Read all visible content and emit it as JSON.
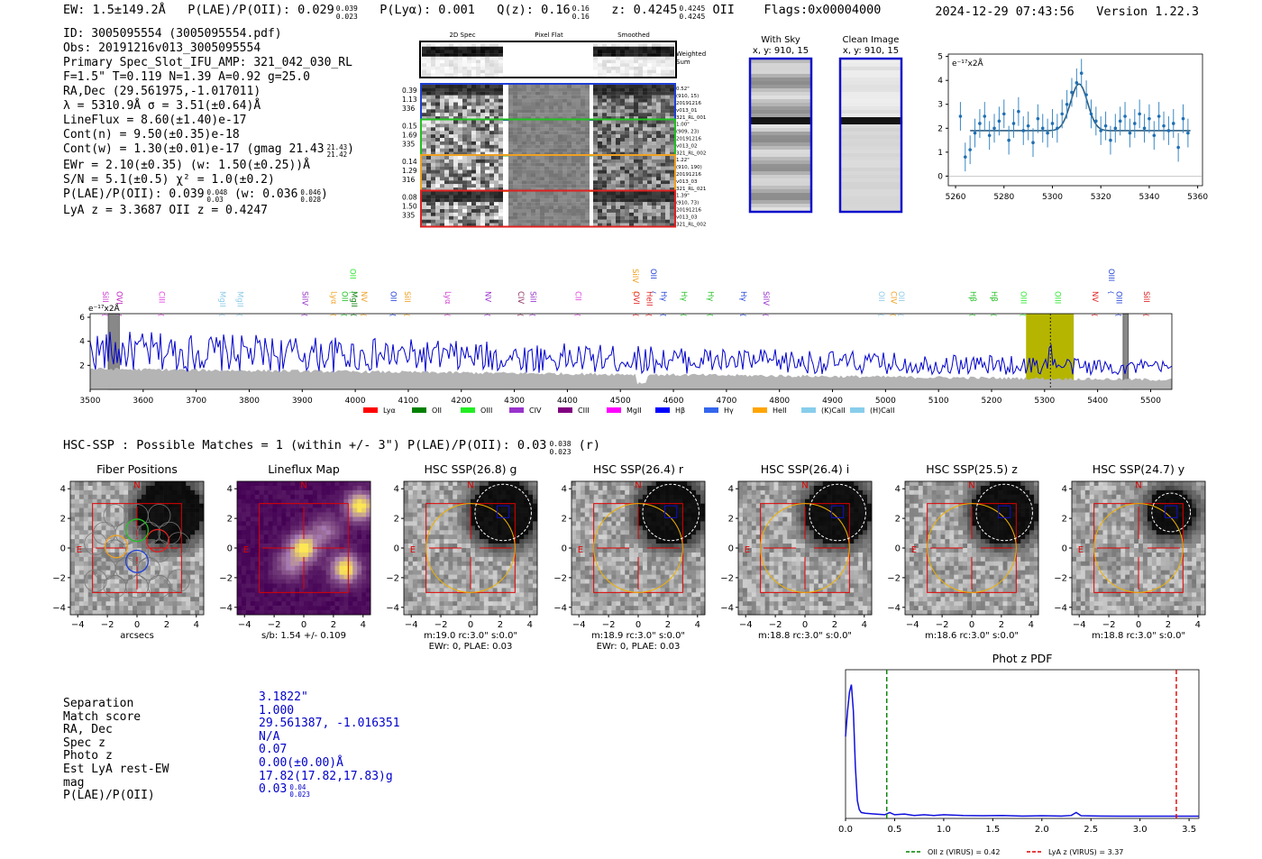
{
  "header": {
    "ew": "EW: 1.5±149.2Å",
    "plae_label": "P(LAE)/P(OII): 0.029",
    "plae_hi": "0.039",
    "plae_lo": "0.023",
    "plya": "P(Lyα): 0.001",
    "qz_label": "Q(z): 0.16",
    "qz_hi": "0.16",
    "qz_lo": "0.16",
    "z_label": "z: 0.4245",
    "z_hi": "0.4245",
    "z_lo": "0.4245",
    "z_line": "OII",
    "flags": "Flags:0x00004000",
    "timestamp": "2024-12-29 07:43:56",
    "version": "Version 1.22.3"
  },
  "info": {
    "lines": [
      "ID: 3005095554 (3005095554.pdf)",
      "Obs: 20191216v013_3005095554",
      "Primary Spec_Slot_IFU_AMP: 321_042_030_RL",
      "F=1.5\"  T=0.119  N=1.39  A=0.92  g=25.0",
      "RA,Dec (29.561975,-1.017011)",
      "λ = 5310.9Å   σ = 3.51(±0.64)Å",
      "LineFlux = 8.60(±1.40)e-17",
      "Cont(n) = 9.50(±0.35)e-18",
      "Cont(w) = 1.30(±0.01)e-17 (gmag 21.43",
      "EWr = 2.10(±0.35) (w: 1.50(±0.25))Å",
      "S/N = 5.1(±0.5)  χ² = 1.0(±0.2)",
      "P(LAE)/P(OII): 0.039",
      "LyA z = 3.3687  OII z = 0.4247"
    ],
    "gmag_hi": "21.43",
    "gmag_lo": "21.42",
    "plae_hi": "0.048",
    "plae_lo": "0.03",
    "plae_w": "(w: 0.036",
    "plae_w_hi": "0.046",
    "plae_w_lo": "0.028"
  },
  "cutouts": {
    "col_titles": [
      "2D Spec",
      "Pixel Flat",
      "Smoothed"
    ],
    "weighted": "Weighted Sum",
    "rows": [
      {
        "stats": [
          "0.39",
          "1.13",
          "336"
        ],
        "meta": [
          "0.52\"",
          "(910, 15)",
          "20191216",
          "v013_01",
          "321_RL_001"
        ],
        "color": "#1f3fd6"
      },
      {
        "stats": [
          "0.15",
          "1.69",
          "335"
        ],
        "meta": [
          "1.00\"",
          "(909, 23)",
          "20191216",
          "v013_02",
          "321_RL_002"
        ],
        "color": "#22c022"
      },
      {
        "stats": [
          "0.14",
          "1.29",
          "316"
        ],
        "meta": [
          "1.22\"",
          "(910, 190)",
          "20191216",
          "v013_03",
          "321_RL_021"
        ],
        "color": "#f0a020"
      },
      {
        "stats": [
          "0.08",
          "1.50",
          "335"
        ],
        "meta": [
          "1.39\"",
          "(910, 73)",
          "20191216",
          "v013_03",
          "321_RL_002"
        ],
        "color": "#e02020"
      }
    ],
    "with_sky_title": "With Sky",
    "with_sky_xy": "x, y: 910, 15",
    "clean_title": "Clean Image",
    "clean_xy": "x, y: 910, 15"
  },
  "zoom_chart_unit": "e⁻¹⁷x2Å",
  "spectrum_unit": "e⁻¹⁷x2Å",
  "line_labels": [
    {
      "name": "SiII",
      "w": 3519,
      "color": "#d040d0",
      "h": 1
    },
    {
      "name": "OVI",
      "w": 3545,
      "color": "#c020c0",
      "h": 1
    },
    {
      "name": "CIII",
      "w": 3625,
      "color": "#e040e0",
      "h": 1
    },
    {
      "name": "MgII",
      "w": 3740,
      "color": "#8ecbe8",
      "h": 1
    },
    {
      "name": "MgII",
      "w": 3773,
      "color": "#8ecbe8",
      "h": 1
    },
    {
      "name": "SiIV",
      "w": 3895,
      "color": "#9933cc",
      "h": 1
    },
    {
      "name": "Lyα",
      "w": 3950,
      "color": "#f0a020",
      "h": 1
    },
    {
      "name": "OII",
      "w": 3970,
      "color": "#22c022",
      "h": 1
    },
    {
      "name": "OII",
      "w": 3985,
      "color": "#2ee82e",
      "h": 2
    },
    {
      "name": "MgII",
      "w": 3988,
      "color": "#108010",
      "h": 1
    },
    {
      "name": "NV",
      "w": 4007,
      "color": "#f0a020",
      "h": 1
    },
    {
      "name": "OII",
      "w": 4062,
      "color": "#1f3fd6",
      "h": 1
    },
    {
      "name": "SiII",
      "w": 4088,
      "color": "#f0a020",
      "h": 1
    },
    {
      "name": "Lyα",
      "w": 4165,
      "color": "#d040d0",
      "h": 1
    },
    {
      "name": "NV",
      "w": 4240,
      "color": "#9933cc",
      "h": 1
    },
    {
      "name": "CIV",
      "w": 4302,
      "color": "#8a3060",
      "h": 1
    },
    {
      "name": "SiII",
      "w": 4325,
      "color": "#9933cc",
      "h": 1
    },
    {
      "name": "CII",
      "w": 4410,
      "color": "#e040e0",
      "h": 1
    },
    {
      "name": "SiIV",
      "w": 4518,
      "color": "#f0a020",
      "h": 2
    },
    {
      "name": "OVI",
      "w": 4520,
      "color": "#e02020",
      "h": 1
    },
    {
      "name": "OII",
      "w": 4552,
      "color": "#1f3fd6",
      "h": 2
    },
    {
      "name": "HeII",
      "w": 4545,
      "color": "#e02020",
      "h": 1
    },
    {
      "name": "Hγ",
      "w": 4572,
      "color": "#1f3fd6",
      "h": 1
    },
    {
      "name": "Hγ",
      "w": 4610,
      "color": "#22c022",
      "h": 1
    },
    {
      "name": "Hγ",
      "w": 4660,
      "color": "#22c022",
      "h": 1
    },
    {
      "name": "Hγ",
      "w": 4722,
      "color": "#1f3fd6",
      "h": 1
    },
    {
      "name": "SiIV",
      "w": 4765,
      "color": "#9933cc",
      "h": 1
    },
    {
      "name": "OII",
      "w": 4982,
      "color": "#8ecbe8",
      "h": 1
    },
    {
      "name": "CIV",
      "w": 5005,
      "color": "#f0a020",
      "h": 1
    },
    {
      "name": "OII",
      "w": 5020,
      "color": "#8ecbe8",
      "h": 1
    },
    {
      "name": "Hβ",
      "w": 5155,
      "color": "#22c022",
      "h": 1
    },
    {
      "name": "Hβ",
      "w": 5195,
      "color": "#22c022",
      "h": 1
    },
    {
      "name": "OIII",
      "w": 5250,
      "color": "#2ee82e",
      "h": 1
    },
    {
      "name": "OIII",
      "w": 5315,
      "color": "#2ee82e",
      "h": 1
    },
    {
      "name": "NV",
      "w": 5385,
      "color": "#e02020",
      "h": 1
    },
    {
      "name": "OIII",
      "w": 5416,
      "color": "#1f3fd6",
      "h": 2
    },
    {
      "name": "OIII",
      "w": 5430,
      "color": "#1f3fd6",
      "h": 1
    },
    {
      "name": "SiII",
      "w": 5482,
      "color": "#e02020",
      "h": 1
    }
  ],
  "legend": [
    {
      "label": "Lyα",
      "color": "#ff0000"
    },
    {
      "label": "OII",
      "color": "#008000"
    },
    {
      "label": "OIII",
      "color": "#22ee22"
    },
    {
      "label": "CIV",
      "color": "#9933cc"
    },
    {
      "label": "CIII",
      "color": "#800080"
    },
    {
      "label": "MgII",
      "color": "#ff00ff"
    },
    {
      "label": "Hβ",
      "color": "#0000ff"
    },
    {
      "label": "Hγ",
      "color": "#3366ee"
    },
    {
      "label": "HeII",
      "color": "#ffa500"
    },
    {
      "label": "(K)CaII",
      "color": "#87ceeb"
    },
    {
      "label": "(H)CaII",
      "color": "#87ceeb"
    }
  ],
  "hsc": {
    "summary": "HSC-SSP : Possible Matches = 1 (within +/- 3\")  P(LAE)/P(OII): 0.03",
    "summary_hi": "0.038",
    "summary_lo": "0.023",
    "summary_tail": "(r)",
    "panels": [
      {
        "title": "Fiber Positions",
        "caption1": "arcsecs",
        "caption2": ""
      },
      {
        "title": "Lineflux Map",
        "caption1": "s/b: 1.54 +/- 0.109",
        "caption2": ""
      },
      {
        "title": "HSC SSP(26.8) g",
        "caption1": "m:19.0 rc:3.0\"  s:0.0\"",
        "caption2": "EWr: 0, PLAE: 0.03"
      },
      {
        "title": "HSC SSP(26.4) r",
        "caption1": "m:18.9 rc:3.0\"  s:0.0\"",
        "caption2": "EWr: 0, PLAE: 0.03"
      },
      {
        "title": "HSC SSP(26.4) i",
        "caption1": "m:18.8 rc:3.0\"  s:0.0\"",
        "caption2": ""
      },
      {
        "title": "HSC SSP(25.5) z",
        "caption1": "m:18.6 rc:3.0\"  s:0.0\"",
        "caption2": ""
      },
      {
        "title": "HSC SSP(24.7) y",
        "caption1": "m:18.8 rc:3.0\"  s:0.0\"",
        "caption2": ""
      }
    ],
    "north": "N",
    "east": "E"
  },
  "match_table": {
    "labels": [
      "Separation",
      "Match score",
      "RA, Dec",
      "Spec z",
      "Photo z",
      "Est LyA rest-EW",
      "mag",
      "P(LAE)/P(OII)"
    ],
    "values": [
      "3.1822\"",
      "1.000",
      "29.561387, -1.016351",
      "N/A",
      "0.07",
      "0.00(±0.00)Å",
      "17.82(17.82,17.83)g",
      "0.03"
    ],
    "plae_hi": "0.04",
    "plae_lo": "0.023"
  },
  "chart_data": [
    {
      "type": "line",
      "id": "zoom-spectrum",
      "title": "",
      "ylabel": "e⁻¹⁷x2Å",
      "xlim": [
        5257,
        5362
      ],
      "ylim": [
        -0.4,
        5.1
      ],
      "xticks": [
        5260,
        5280,
        5300,
        5320,
        5340,
        5360
      ],
      "yticks": [
        0,
        1,
        2,
        3,
        4,
        5
      ],
      "x": [
        5262,
        5264,
        5266,
        5268,
        5270,
        5272,
        5274,
        5276,
        5278,
        5280,
        5282,
        5284,
        5286,
        5288,
        5290,
        5292,
        5294,
        5296,
        5298,
        5300,
        5302,
        5304,
        5306,
        5308,
        5310,
        5312,
        5314,
        5316,
        5318,
        5320,
        5322,
        5324,
        5326,
        5328,
        5330,
        5332,
        5334,
        5336,
        5338,
        5340,
        5342,
        5344,
        5346,
        5348,
        5350,
        5352,
        5354,
        5356
      ],
      "values": [
        2.5,
        0.8,
        1.1,
        1.8,
        2.2,
        2.5,
        1.7,
        2.0,
        2.3,
        2.6,
        1.5,
        2.2,
        2.7,
        1.9,
        2.1,
        1.4,
        2.4,
        2.0,
        1.8,
        2.2,
        2.0,
        2.6,
        3.0,
        3.5,
        3.9,
        4.3,
        3.4,
        2.6,
        2.3,
        1.9,
        2.1,
        1.5,
        2.0,
        2.3,
        2.5,
        1.8,
        2.2,
        2.6,
        2.0,
        2.4,
        1.7,
        2.5,
        2.1,
        1.9,
        2.2,
        1.2,
        2.4,
        1.8
      ],
      "errors": [
        0.6,
        0.6,
        0.6,
        0.6,
        0.6,
        0.6,
        0.6,
        0.6,
        0.6,
        0.6,
        0.6,
        0.6,
        0.6,
        0.6,
        0.6,
        0.6,
        0.6,
        0.6,
        0.6,
        0.6,
        0.6,
        0.6,
        0.6,
        0.6,
        0.6,
        0.6,
        0.6,
        0.6,
        0.6,
        0.6,
        0.6,
        0.6,
        0.6,
        0.6,
        0.6,
        0.6,
        0.6,
        0.6,
        0.6,
        0.6,
        0.6,
        0.6,
        0.6,
        0.6,
        0.6,
        0.6,
        0.6,
        0.6
      ],
      "model": {
        "continuum": 1.9,
        "center": 5311,
        "sigma": 3.51,
        "amplitude": 1.95,
        "x_range": [
          5266,
          5357
        ]
      }
    },
    {
      "type": "line",
      "id": "full-spectrum",
      "title": "",
      "ylabel": "e⁻¹⁷x2Å",
      "xlim": [
        3500,
        5540
      ],
      "ylim": [
        0,
        6.3
      ],
      "xticks": [
        3500,
        3600,
        3700,
        3800,
        3900,
        4000,
        4100,
        4200,
        4300,
        4400,
        4500,
        4600,
        4700,
        4800,
        4900,
        5000,
        5100,
        5200,
        5300,
        5400,
        5500
      ],
      "yticks": [
        2,
        4,
        6
      ],
      "highlight_range": [
        5265,
        5355
      ],
      "line_center": 5310.9,
      "masked_ranges": [
        [
          3534,
          3555
        ],
        [
          5448,
          5458
        ]
      ],
      "series": [
        {
          "name": "flux",
          "color": "#0000cc",
          "x_range": [
            3500,
            5540
          ],
          "points": 600,
          "seed": 17
        },
        {
          "name": "error",
          "color": "#b4b4b4",
          "x_range": [
            3500,
            5540
          ]
        }
      ]
    },
    {
      "type": "line",
      "id": "photz-pdf",
      "title": "Phot z PDF",
      "xlabel": "",
      "ylabel": "",
      "xlim": [
        0,
        3.6
      ],
      "ylim": [
        0,
        1
      ],
      "xticks": [
        0.0,
        0.5,
        1.0,
        1.5,
        2.0,
        2.5,
        3.0,
        3.5
      ],
      "x": [
        0,
        0.02,
        0.04,
        0.06,
        0.08,
        0.1,
        0.12,
        0.14,
        0.16,
        0.2,
        0.3,
        0.4,
        0.45,
        0.5,
        0.6,
        0.7,
        0.8,
        0.9,
        1.0,
        1.2,
        1.4,
        1.6,
        1.8,
        2.0,
        2.2,
        2.3,
        2.35,
        2.4,
        2.6,
        2.8,
        3.0,
        3.2,
        3.4,
        3.6
      ],
      "values": [
        0.55,
        0.72,
        0.85,
        0.9,
        0.72,
        0.35,
        0.12,
        0.06,
        0.04,
        0.035,
        0.03,
        0.025,
        0.04,
        0.025,
        0.03,
        0.02,
        0.025,
        0.02,
        0.025,
        0.02,
        0.018,
        0.02,
        0.016,
        0.018,
        0.016,
        0.02,
        0.04,
        0.018,
        0.016,
        0.015,
        0.015,
        0.015,
        0.015,
        0.015
      ],
      "vlines": [
        {
          "x": 0.42,
          "label": "OII z (VIRUS) = 0.42",
          "color": "#008000"
        },
        {
          "x": 3.37,
          "label": "LyA z (VIRUS) = 3.37",
          "color": "#e00000"
        }
      ]
    }
  ]
}
